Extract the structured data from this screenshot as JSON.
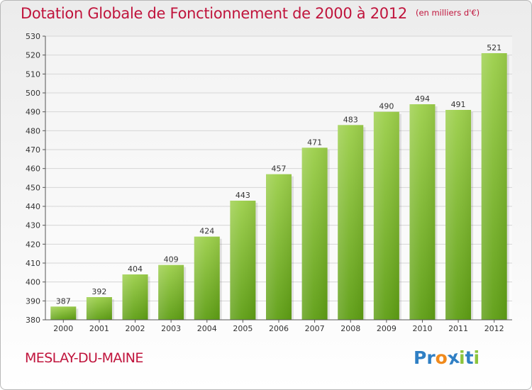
{
  "chart_data": {
    "type": "bar",
    "title": "Dotation Globale de Fonctionnement de 2000 à 2012",
    "subtitle": "(en milliers d'€)",
    "categories": [
      "2000",
      "2001",
      "2002",
      "2003",
      "2004",
      "2005",
      "2006",
      "2007",
      "2008",
      "2009",
      "2010",
      "2011",
      "2012"
    ],
    "values": [
      387,
      392,
      404,
      409,
      424,
      443,
      457,
      471,
      483,
      490,
      494,
      491,
      521
    ],
    "data_labels": [
      "387",
      "392",
      "404",
      "409",
      "424",
      "443",
      "457",
      "471",
      "483",
      "490",
      "494",
      "491",
      "521"
    ],
    "ylim": [
      380,
      530
    ],
    "yticks": [
      380,
      390,
      400,
      410,
      420,
      430,
      440,
      450,
      460,
      470,
      480,
      490,
      500,
      510,
      520,
      530
    ],
    "grid": true,
    "bar_color_top": "#9ccf4a",
    "bar_color_bottom": "#5e9e14"
  },
  "footer": {
    "place": "MESLAY-DU-MAINE",
    "logo_letters": [
      {
        "char": "P",
        "color": "#2f7fc4"
      },
      {
        "char": "r",
        "color": "#2f7fc4"
      },
      {
        "char": "o",
        "color": "#f08a1c"
      },
      {
        "char": "x",
        "color": "#2f7fc4"
      },
      {
        "char": "i",
        "color": "#8cc43c"
      },
      {
        "char": "t",
        "color": "#2f7fc4"
      },
      {
        "char": "i",
        "color": "#8cc43c"
      }
    ]
  },
  "colors": {
    "title": "#c0143c",
    "grid": "#d6d6d6",
    "axis": "#555555"
  }
}
